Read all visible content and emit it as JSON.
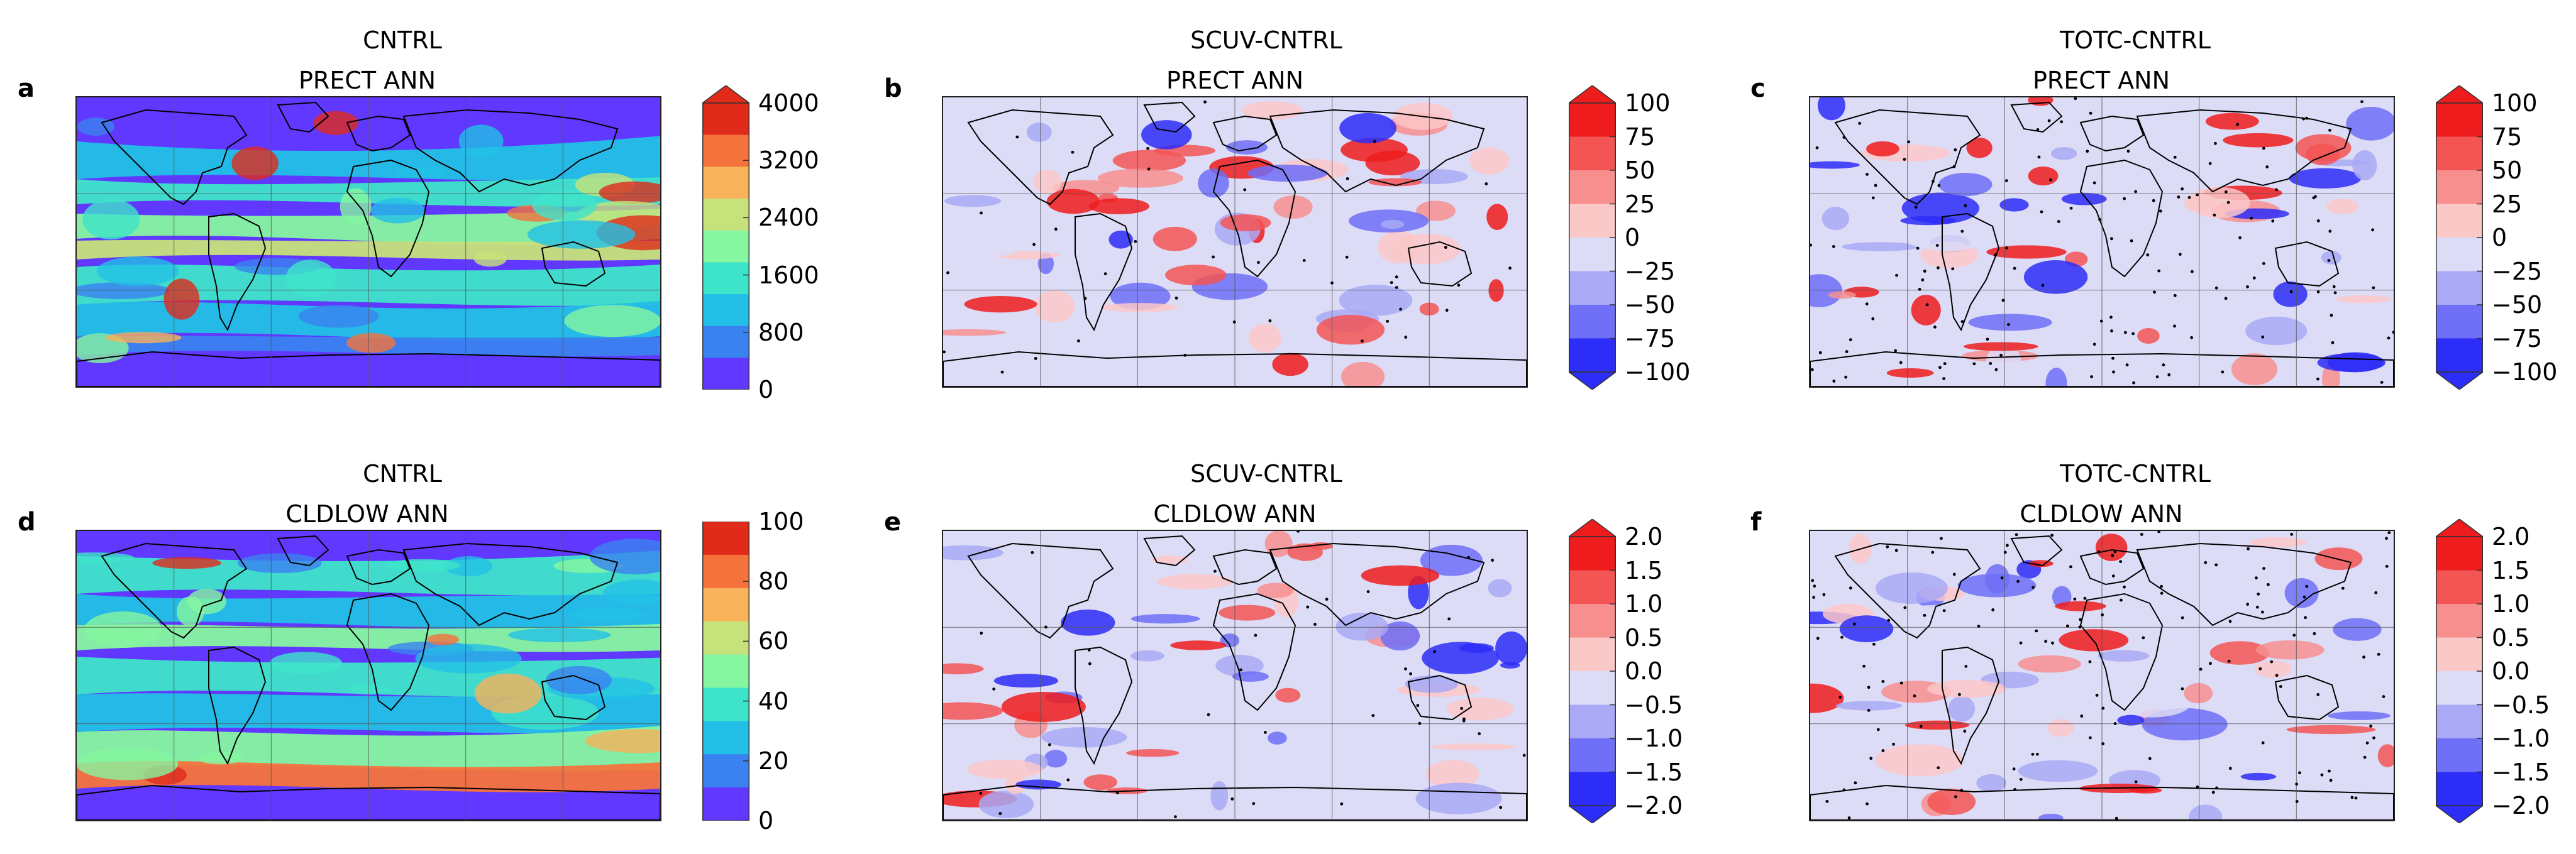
{
  "panels": [
    {
      "id": "a",
      "letter": "a",
      "title": "CNTRL",
      "subtitle": "PRECT ANN",
      "scheme": "rainbow",
      "colorbar": {
        "ticks": [
          "4000",
          "3200",
          "2400",
          "1600",
          "800",
          "0"
        ],
        "colors": [
          "#e02b1b",
          "#f4733c",
          "#f7b25a",
          "#c7e27a",
          "#86f6a0",
          "#3ee4c9",
          "#22c0e6",
          "#3a82f0",
          "#6038ff"
        ],
        "arrow_top": true,
        "arrow_bottom": false
      }
    },
    {
      "id": "b",
      "letter": "b",
      "title": "SCUV-CNTRL",
      "subtitle": "PRECT ANN",
      "scheme": "diverging",
      "colorbar": {
        "ticks": [
          "100",
          "75",
          "50",
          "25",
          "0",
          "−25",
          "−50",
          "−75",
          "−100"
        ],
        "colors": [
          "#ee1c1c",
          "#f35555",
          "#f78f8f",
          "#fbc8c8",
          "#dcdcf7",
          "#a9a9f6",
          "#6f6ff7",
          "#2d2df8"
        ],
        "arrow_top": true,
        "arrow_bottom": true
      }
    },
    {
      "id": "c",
      "letter": "c",
      "title": "TOTC-CNTRL",
      "subtitle": "PRECT ANN",
      "scheme": "diverging",
      "colorbar": {
        "ticks": [
          "100",
          "75",
          "50",
          "25",
          "0",
          "−25",
          "−50",
          "−75",
          "−100"
        ],
        "colors": [
          "#ee1c1c",
          "#f35555",
          "#f78f8f",
          "#fbc8c8",
          "#dcdcf7",
          "#a9a9f6",
          "#6f6ff7",
          "#2d2df8"
        ],
        "arrow_top": true,
        "arrow_bottom": true
      }
    },
    {
      "id": "d",
      "letter": "d",
      "title": "CNTRL",
      "subtitle": "CLDLOW ANN",
      "scheme": "rainbow",
      "colorbar": {
        "ticks": [
          "100",
          "80",
          "60",
          "40",
          "20",
          "0"
        ],
        "colors": [
          "#e02b1b",
          "#f4733c",
          "#f7b25a",
          "#c7e27a",
          "#86f6a0",
          "#3ee4c9",
          "#22c0e6",
          "#3a82f0",
          "#6038ff"
        ],
        "arrow_top": false,
        "arrow_bottom": false
      }
    },
    {
      "id": "e",
      "letter": "e",
      "title": "SCUV-CNTRL",
      "subtitle": "CLDLOW ANN",
      "scheme": "diverging",
      "colorbar": {
        "ticks": [
          "2.0",
          "1.5",
          "1.0",
          "0.5",
          "0.0",
          "−0.5",
          "−1.0",
          "−1.5",
          "−2.0"
        ],
        "colors": [
          "#ee1c1c",
          "#f35555",
          "#f78f8f",
          "#fbc8c8",
          "#dcdcf7",
          "#a9a9f6",
          "#6f6ff7",
          "#2d2df8"
        ],
        "arrow_top": true,
        "arrow_bottom": true
      }
    },
    {
      "id": "f",
      "letter": "f",
      "title": "TOTC-CNTRL",
      "subtitle": "CLDLOW ANN",
      "scheme": "diverging",
      "colorbar": {
        "ticks": [
          "2.0",
          "1.5",
          "1.0",
          "0.5",
          "0.0",
          "−0.5",
          "−1.0",
          "−1.5",
          "−2.0"
        ],
        "colors": [
          "#ee1c1c",
          "#f35555",
          "#f78f8f",
          "#fbc8c8",
          "#dcdcf7",
          "#a9a9f6",
          "#6f6ff7",
          "#2d2df8"
        ],
        "arrow_top": true,
        "arrow_bottom": true
      }
    }
  ]
}
